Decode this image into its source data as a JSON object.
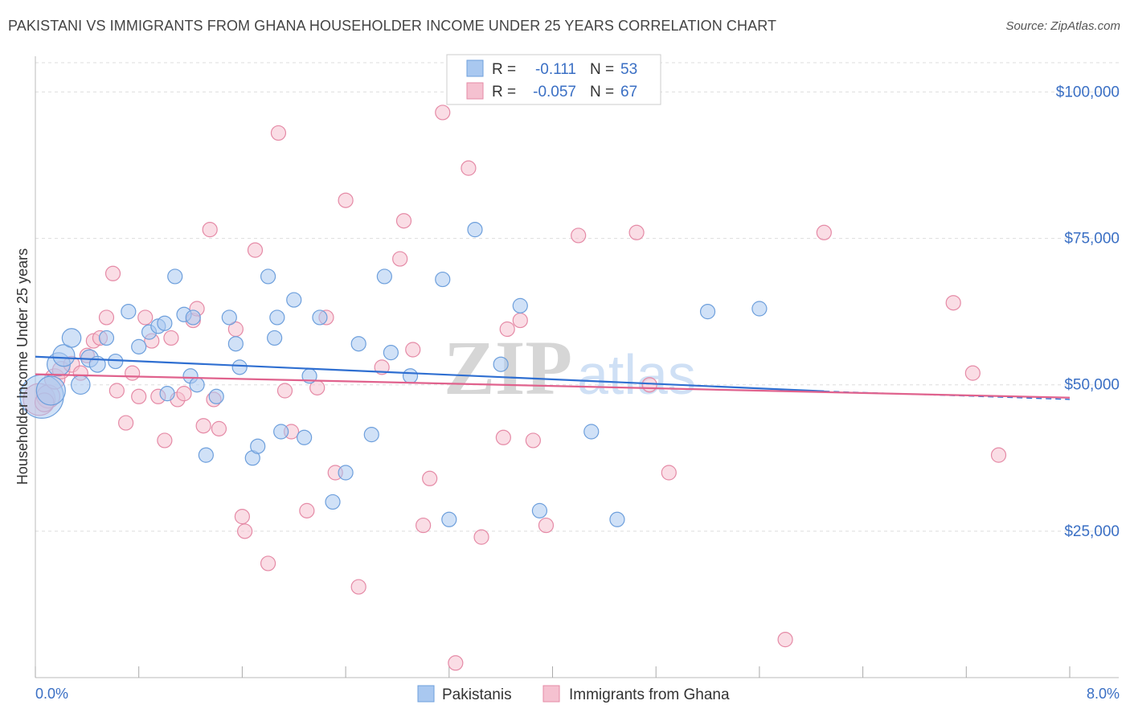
{
  "header": {
    "title": "PAKISTANI VS IMMIGRANTS FROM GHANA HOUSEHOLDER INCOME UNDER 25 YEARS CORRELATION CHART",
    "source": "Source: ZipAtlas.com"
  },
  "watermark": {
    "zip": "ZIP",
    "atlas": "atlas"
  },
  "colors": {
    "blue_fill": "#a9c8f0",
    "blue_stroke": "#6d9fdc",
    "blue_line": "#2f6fd1",
    "pink_fill": "#f5c1d0",
    "pink_stroke": "#e58aa6",
    "pink_line": "#e0628d",
    "tick_text": "#3a6fc4",
    "grid": "#dddddd"
  },
  "stats": [
    {
      "r_label": "R =",
      "r_value": "-0.111",
      "n_label": "N =",
      "n_value": "53"
    },
    {
      "r_label": "R =",
      "r_value": "-0.057",
      "n_label": "N =",
      "n_value": "67"
    }
  ],
  "chart_data": {
    "type": "scatter",
    "ylabel": "Householder Income Under 25 years",
    "xlim": [
      0,
      8
    ],
    "ylim": [
      0,
      105000
    ],
    "x_tick_labels": [
      "0.0%",
      "8.0%"
    ],
    "y_ticks": [
      {
        "value": 25000,
        "label": "$25,000"
      },
      {
        "value": 50000,
        "label": "$50,000"
      },
      {
        "value": 75000,
        "label": "$75,000"
      },
      {
        "value": 100000,
        "label": "$100,000"
      }
    ],
    "grid": true,
    "legend_position": "bottom-center",
    "series": [
      {
        "name": "Pakistanis",
        "color": "#a9c8f0",
        "trend": {
          "x": [
            0,
            6.1
          ],
          "y": [
            54800,
            48900
          ],
          "dashed_to": [
            8.0,
            47500
          ]
        },
        "points": [
          {
            "x": 0.05,
            "y": 48000,
            "s": 3
          },
          {
            "x": 0.12,
            "y": 49000,
            "s": 2
          },
          {
            "x": 0.18,
            "y": 53500,
            "s": 1.6
          },
          {
            "x": 0.22,
            "y": 55000,
            "s": 1.5
          },
          {
            "x": 0.28,
            "y": 58000,
            "s": 1.3
          },
          {
            "x": 0.35,
            "y": 50000,
            "s": 1.3
          },
          {
            "x": 0.42,
            "y": 54500,
            "s": 1.2
          },
          {
            "x": 0.48,
            "y": 53500,
            "s": 1.1
          },
          {
            "x": 0.55,
            "y": 58000,
            "s": 1
          },
          {
            "x": 0.62,
            "y": 54000,
            "s": 1
          },
          {
            "x": 0.72,
            "y": 62500,
            "s": 1
          },
          {
            "x": 0.8,
            "y": 56500,
            "s": 1
          },
          {
            "x": 0.88,
            "y": 59000,
            "s": 1
          },
          {
            "x": 0.95,
            "y": 60000,
            "s": 1
          },
          {
            "x": 1.0,
            "y": 60500,
            "s": 1
          },
          {
            "x": 1.02,
            "y": 48500,
            "s": 1
          },
          {
            "x": 1.08,
            "y": 68500,
            "s": 1
          },
          {
            "x": 1.15,
            "y": 62000,
            "s": 1
          },
          {
            "x": 1.2,
            "y": 51500,
            "s": 1
          },
          {
            "x": 1.22,
            "y": 61500,
            "s": 1
          },
          {
            "x": 1.25,
            "y": 50000,
            "s": 1
          },
          {
            "x": 1.32,
            "y": 38000,
            "s": 1
          },
          {
            "x": 1.4,
            "y": 48000,
            "s": 1
          },
          {
            "x": 1.5,
            "y": 61500,
            "s": 1
          },
          {
            "x": 1.55,
            "y": 57000,
            "s": 1
          },
          {
            "x": 1.58,
            "y": 53000,
            "s": 1
          },
          {
            "x": 1.68,
            "y": 37500,
            "s": 1
          },
          {
            "x": 1.72,
            "y": 39500,
            "s": 1
          },
          {
            "x": 1.8,
            "y": 68500,
            "s": 1
          },
          {
            "x": 1.85,
            "y": 58000,
            "s": 1
          },
          {
            "x": 1.87,
            "y": 61500,
            "s": 1
          },
          {
            "x": 1.9,
            "y": 42000,
            "s": 1
          },
          {
            "x": 2.0,
            "y": 64500,
            "s": 1
          },
          {
            "x": 2.08,
            "y": 41000,
            "s": 1
          },
          {
            "x": 2.12,
            "y": 51500,
            "s": 1
          },
          {
            "x": 2.2,
            "y": 61500,
            "s": 1
          },
          {
            "x": 2.3,
            "y": 30000,
            "s": 1
          },
          {
            "x": 2.4,
            "y": 35000,
            "s": 1
          },
          {
            "x": 2.5,
            "y": 57000,
            "s": 1
          },
          {
            "x": 2.6,
            "y": 41500,
            "s": 1
          },
          {
            "x": 2.7,
            "y": 68500,
            "s": 1
          },
          {
            "x": 2.75,
            "y": 55500,
            "s": 1
          },
          {
            "x": 2.9,
            "y": 51500,
            "s": 1
          },
          {
            "x": 3.15,
            "y": 68000,
            "s": 1
          },
          {
            "x": 3.2,
            "y": 27000,
            "s": 1
          },
          {
            "x": 3.4,
            "y": 76500,
            "s": 1
          },
          {
            "x": 3.6,
            "y": 53500,
            "s": 1
          },
          {
            "x": 3.75,
            "y": 63500,
            "s": 1
          },
          {
            "x": 3.9,
            "y": 28500,
            "s": 1
          },
          {
            "x": 4.3,
            "y": 42000,
            "s": 1
          },
          {
            "x": 4.5,
            "y": 27000,
            "s": 1
          },
          {
            "x": 5.2,
            "y": 62500,
            "s": 1
          },
          {
            "x": 5.6,
            "y": 63000,
            "s": 1
          }
        ]
      },
      {
        "name": "Immigrants from Ghana",
        "color": "#f5c1d0",
        "trend": {
          "x": [
            0,
            8.0
          ],
          "y": [
            51800,
            47800
          ]
        },
        "points": [
          {
            "x": 0.03,
            "y": 47500,
            "s": 2.2
          },
          {
            "x": 0.1,
            "y": 48000,
            "s": 1.6
          },
          {
            "x": 0.15,
            "y": 51000,
            "s": 1.4
          },
          {
            "x": 0.2,
            "y": 52500,
            "s": 1.2
          },
          {
            "x": 0.28,
            "y": 53500,
            "s": 1.1
          },
          {
            "x": 0.35,
            "y": 52000,
            "s": 1
          },
          {
            "x": 0.4,
            "y": 55000,
            "s": 1
          },
          {
            "x": 0.45,
            "y": 57500,
            "s": 1
          },
          {
            "x": 0.5,
            "y": 58000,
            "s": 1
          },
          {
            "x": 0.55,
            "y": 61500,
            "s": 1
          },
          {
            "x": 0.6,
            "y": 69000,
            "s": 1
          },
          {
            "x": 0.63,
            "y": 49000,
            "s": 1
          },
          {
            "x": 0.7,
            "y": 43500,
            "s": 1
          },
          {
            "x": 0.75,
            "y": 52000,
            "s": 1
          },
          {
            "x": 0.8,
            "y": 48000,
            "s": 1
          },
          {
            "x": 0.85,
            "y": 61500,
            "s": 1
          },
          {
            "x": 0.9,
            "y": 57500,
            "s": 1
          },
          {
            "x": 0.95,
            "y": 48000,
            "s": 1
          },
          {
            "x": 1.0,
            "y": 40500,
            "s": 1
          },
          {
            "x": 1.05,
            "y": 58000,
            "s": 1
          },
          {
            "x": 1.1,
            "y": 47500,
            "s": 1
          },
          {
            "x": 1.15,
            "y": 48500,
            "s": 1
          },
          {
            "x": 1.22,
            "y": 61000,
            "s": 1
          },
          {
            "x": 1.25,
            "y": 63000,
            "s": 1
          },
          {
            "x": 1.3,
            "y": 43000,
            "s": 1
          },
          {
            "x": 1.35,
            "y": 76500,
            "s": 1
          },
          {
            "x": 1.38,
            "y": 47500,
            "s": 1
          },
          {
            "x": 1.42,
            "y": 42500,
            "s": 1
          },
          {
            "x": 1.55,
            "y": 59500,
            "s": 1
          },
          {
            "x": 1.6,
            "y": 27500,
            "s": 1
          },
          {
            "x": 1.62,
            "y": 25000,
            "s": 1
          },
          {
            "x": 1.7,
            "y": 73000,
            "s": 1
          },
          {
            "x": 1.8,
            "y": 19500,
            "s": 1
          },
          {
            "x": 1.88,
            "y": 93000,
            "s": 1
          },
          {
            "x": 1.93,
            "y": 49000,
            "s": 1
          },
          {
            "x": 1.98,
            "y": 42000,
            "s": 1
          },
          {
            "x": 2.1,
            "y": 28500,
            "s": 1
          },
          {
            "x": 2.18,
            "y": 49500,
            "s": 1
          },
          {
            "x": 2.25,
            "y": 61500,
            "s": 1
          },
          {
            "x": 2.32,
            "y": 35000,
            "s": 1
          },
          {
            "x": 2.4,
            "y": 81500,
            "s": 1
          },
          {
            "x": 2.5,
            "y": 15500,
            "s": 1
          },
          {
            "x": 2.68,
            "y": 53000,
            "s": 1
          },
          {
            "x": 2.82,
            "y": 71500,
            "s": 1
          },
          {
            "x": 2.85,
            "y": 78000,
            "s": 1
          },
          {
            "x": 2.92,
            "y": 56000,
            "s": 1
          },
          {
            "x": 3.0,
            "y": 26000,
            "s": 1
          },
          {
            "x": 3.05,
            "y": 34000,
            "s": 1
          },
          {
            "x": 3.15,
            "y": 96500,
            "s": 1
          },
          {
            "x": 3.25,
            "y": 2500,
            "s": 1
          },
          {
            "x": 3.35,
            "y": 87000,
            "s": 1
          },
          {
            "x": 3.45,
            "y": 24000,
            "s": 1
          },
          {
            "x": 3.62,
            "y": 41000,
            "s": 1
          },
          {
            "x": 3.65,
            "y": 59500,
            "s": 1
          },
          {
            "x": 3.75,
            "y": 61000,
            "s": 1
          },
          {
            "x": 3.85,
            "y": 40500,
            "s": 1
          },
          {
            "x": 3.95,
            "y": 26000,
            "s": 1
          },
          {
            "x": 4.2,
            "y": 75500,
            "s": 1
          },
          {
            "x": 4.65,
            "y": 76000,
            "s": 1
          },
          {
            "x": 4.75,
            "y": 50000,
            "s": 1
          },
          {
            "x": 4.9,
            "y": 35000,
            "s": 1
          },
          {
            "x": 5.8,
            "y": 6500,
            "s": 1
          },
          {
            "x": 6.1,
            "y": 76000,
            "s": 1
          },
          {
            "x": 7.1,
            "y": 64000,
            "s": 1
          },
          {
            "x": 7.25,
            "y": 52000,
            "s": 1
          },
          {
            "x": 7.45,
            "y": 38000,
            "s": 1
          },
          {
            "x": 0.07,
            "y": 47000,
            "s": 1.3
          }
        ]
      }
    ]
  }
}
